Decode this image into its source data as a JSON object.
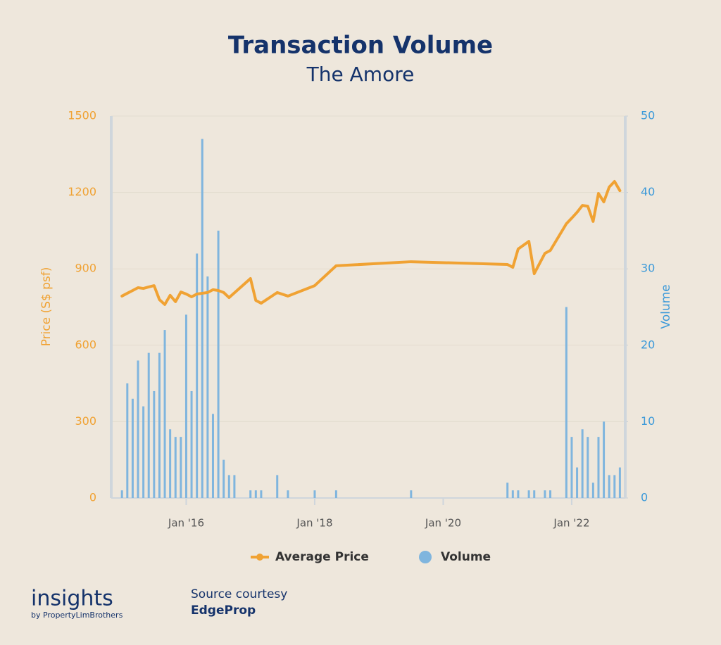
{
  "chart_data": {
    "type": "bar-line",
    "title": "Transaction Volume",
    "subtitle": "The Amore",
    "y_label": "Price (S$ psf)",
    "y2_label": "Volume",
    "xlim": [
      "2014-11",
      "2022-11"
    ],
    "xticks": [
      {
        "value": "2016-01",
        "label": "Jan '16"
      },
      {
        "value": "2018-01",
        "label": "Jan '18"
      },
      {
        "value": "2020-01",
        "label": "Jan '20"
      },
      {
        "value": "2022-01",
        "label": "Jan '22"
      }
    ],
    "ylim": [
      0,
      1500
    ],
    "yticks": [
      0,
      300,
      600,
      900,
      1200,
      1500
    ],
    "y2lim": [
      0,
      50
    ],
    "y2ticks": [
      0,
      10,
      20,
      30,
      40,
      50
    ],
    "grid": true,
    "legend": "bottom",
    "series": [
      {
        "name": "Average Price",
        "type": "line",
        "color": "#f0a233",
        "x": [
          "2015-01",
          "2015-02",
          "2015-03",
          "2015-04",
          "2015-05",
          "2015-06",
          "2015-07",
          "2015-08",
          "2015-09",
          "2015-10",
          "2015-11",
          "2015-12",
          "2016-01",
          "2016-02",
          "2016-03",
          "2016-04",
          "2016-05",
          "2016-06",
          "2016-07",
          "2016-08",
          "2016-09",
          "2017-01",
          "2017-02",
          "2017-03",
          "2017-06",
          "2017-08",
          "2018-01",
          "2018-05",
          "2019-07",
          "2021-01",
          "2021-02",
          "2021-03",
          "2021-05",
          "2021-06",
          "2021-08",
          "2021-09",
          "2021-12",
          "2022-01",
          "2022-02",
          "2022-03",
          "2022-04",
          "2022-05",
          "2022-06",
          "2022-07",
          "2022-08",
          "2022-09",
          "2022-10"
        ],
        "values": [
          793,
          804,
          815,
          826,
          823,
          829,
          834,
          779,
          760,
          796,
          771,
          809,
          801,
          790,
          801,
          804,
          807,
          818,
          815,
          807,
          787,
          862,
          776,
          765,
          807,
          793,
          834,
          912,
          928,
          917,
          906,
          978,
          1008,
          881,
          961,
          972,
          1077,
          1099,
          1122,
          1149,
          1146,
          1086,
          1196,
          1163,
          1221,
          1243,
          1207
        ]
      },
      {
        "name": "Volume",
        "type": "bar",
        "axis": "y2",
        "color": "#7fb5de",
        "x": [
          "2015-01",
          "2015-02",
          "2015-03",
          "2015-04",
          "2015-05",
          "2015-06",
          "2015-07",
          "2015-08",
          "2015-09",
          "2015-10",
          "2015-11",
          "2015-12",
          "2016-01",
          "2016-02",
          "2016-03",
          "2016-04",
          "2016-05",
          "2016-06",
          "2016-07",
          "2016-08",
          "2016-09",
          "2016-10",
          "2017-01",
          "2017-02",
          "2017-03",
          "2017-06",
          "2017-08",
          "2018-01",
          "2018-05",
          "2019-07",
          "2021-01",
          "2021-02",
          "2021-03",
          "2021-05",
          "2021-06",
          "2021-08",
          "2021-09",
          "2021-12",
          "2022-01",
          "2022-02",
          "2022-03",
          "2022-04",
          "2022-05",
          "2022-06",
          "2022-07",
          "2022-08",
          "2022-09",
          "2022-10"
        ],
        "values": [
          1,
          15,
          13,
          18,
          12,
          19,
          14,
          19,
          22,
          9,
          8,
          8,
          24,
          14,
          32,
          47,
          29,
          11,
          35,
          5,
          3,
          3,
          1,
          1,
          1,
          3,
          1,
          1,
          1,
          1,
          2,
          1,
          1,
          1,
          1,
          1,
          1,
          25,
          8,
          4,
          9,
          8,
          2,
          8,
          10,
          3,
          3,
          4
        ]
      }
    ]
  },
  "footer": {
    "brand": "insights",
    "brand_sub": "by PropertyLimBrothers",
    "source_label": "Source courtesy",
    "source": "EdgeProp"
  }
}
